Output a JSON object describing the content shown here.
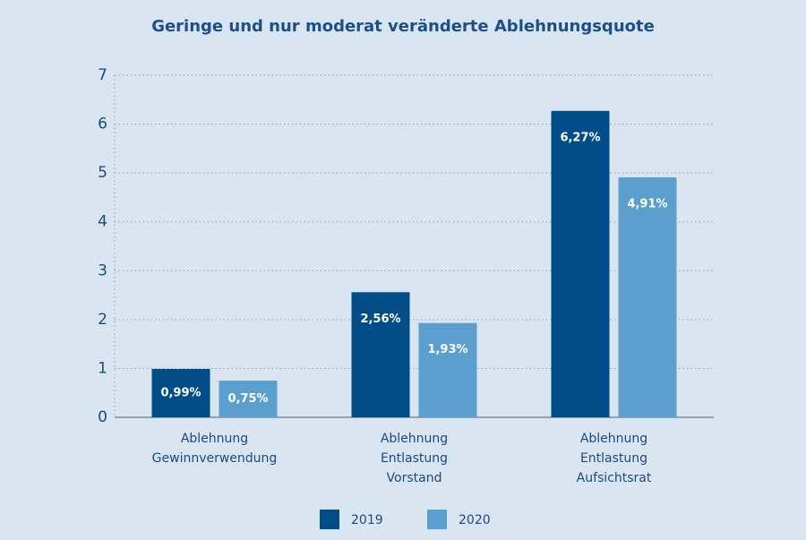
{
  "chart_data": {
    "type": "bar",
    "title": "Geringe und nur moderat veränderte Ablehnungsquote",
    "categories": [
      [
        "Ablehnung",
        "Gewinnverwendung"
      ],
      [
        "Ablehnung",
        "Entlastung",
        "Vorstand"
      ],
      [
        "Ablehnung",
        "Entlastung",
        "Aufsichtsrat"
      ]
    ],
    "series": [
      {
        "name": "2019",
        "color": "#004d87",
        "values": [
          0.99,
          2.56,
          6.27
        ],
        "value_labels": [
          "0,99%",
          "2,56%",
          "6,27%"
        ]
      },
      {
        "name": "2020",
        "color": "#5b9fcf",
        "values": [
          0.75,
          1.93,
          4.91
        ],
        "value_labels": [
          "0,75%",
          "1,93%",
          "4,91%"
        ]
      }
    ],
    "ylim": [
      0,
      7
    ],
    "yticks": [
      0,
      1,
      2,
      3,
      4,
      5,
      6,
      7
    ],
    "grid": true,
    "legend": "bottom"
  }
}
